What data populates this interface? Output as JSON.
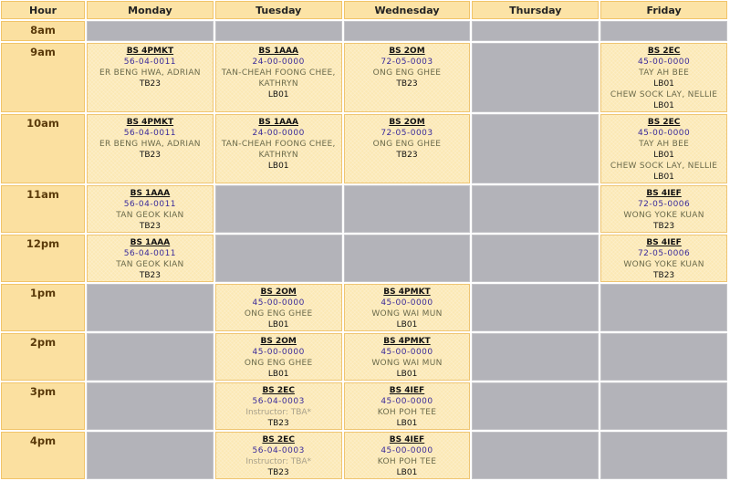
{
  "headers": [
    "Hour",
    "Monday",
    "Tuesday",
    "Wednesday",
    "Thursday",
    "Friday"
  ],
  "rows": [
    {
      "hour": "8am",
      "cells": [
        null,
        null,
        null,
        null,
        null
      ]
    },
    {
      "hour": "9am",
      "cells": [
        {
          "course": "BS 4PMKT",
          "code": "56-04-0011",
          "lines": [
            {
              "inst": "ER BENG HWA, ADRIAN",
              "room": "TB23"
            }
          ]
        },
        {
          "course": "BS 1AAA",
          "code": "24-00-0000",
          "lines": [
            {
              "inst": "TAN-CHEAH FOONG CHEE, KATHRYN",
              "room": "LB01"
            }
          ]
        },
        {
          "course": "BS 2OM",
          "code": "72-05-0003",
          "lines": [
            {
              "inst": "ONG ENG GHEE",
              "room": "TB23"
            }
          ]
        },
        null,
        {
          "course": "BS 2EC",
          "code": "45-00-0000",
          "lines": [
            {
              "inst": "TAY AH BEE",
              "room": "LB01"
            },
            {
              "inst": "CHEW SOCK LAY, NELLIE",
              "room": "LB01"
            }
          ]
        }
      ]
    },
    {
      "hour": "10am",
      "cells": [
        {
          "course": "BS 4PMKT",
          "code": "56-04-0011",
          "lines": [
            {
              "inst": "ER BENG HWA, ADRIAN",
              "room": "TB23"
            }
          ]
        },
        {
          "course": "BS 1AAA",
          "code": "24-00-0000",
          "lines": [
            {
              "inst": "TAN-CHEAH FOONG CHEE, KATHRYN",
              "room": "LB01"
            }
          ]
        },
        {
          "course": "BS 2OM",
          "code": "72-05-0003",
          "lines": [
            {
              "inst": "ONG ENG GHEE",
              "room": "TB23"
            }
          ]
        },
        null,
        {
          "course": "BS 2EC",
          "code": "45-00-0000",
          "lines": [
            {
              "inst": "TAY AH BEE",
              "room": "LB01"
            },
            {
              "inst": "CHEW SOCK LAY, NELLIE",
              "room": "LB01"
            }
          ]
        }
      ]
    },
    {
      "hour": "11am",
      "cells": [
        {
          "course": "BS 1AAA",
          "code": "56-04-0011",
          "lines": [
            {
              "inst": "TAN GEOK KIAN",
              "room": "TB23"
            }
          ]
        },
        null,
        null,
        null,
        {
          "course": "BS 4IEF",
          "code": "72-05-0006",
          "lines": [
            {
              "inst": "WONG YOKE KUAN",
              "room": "TB23"
            }
          ]
        }
      ]
    },
    {
      "hour": "12pm",
      "cells": [
        {
          "course": "BS 1AAA",
          "code": "56-04-0011",
          "lines": [
            {
              "inst": "TAN GEOK KIAN",
              "room": "TB23"
            }
          ]
        },
        null,
        null,
        null,
        {
          "course": "BS 4IEF",
          "code": "72-05-0006",
          "lines": [
            {
              "inst": "WONG YOKE KUAN",
              "room": "TB23"
            }
          ]
        }
      ]
    },
    {
      "hour": "1pm",
      "cells": [
        null,
        {
          "course": "BS 2OM",
          "code": "45-00-0000",
          "lines": [
            {
              "inst": "ONG ENG GHEE",
              "room": "LB01"
            }
          ]
        },
        {
          "course": "BS 4PMKT",
          "code": "45-00-0000",
          "lines": [
            {
              "inst": "WONG WAI MUN",
              "room": "LB01"
            }
          ]
        },
        null,
        null
      ]
    },
    {
      "hour": "2pm",
      "cells": [
        null,
        {
          "course": "BS 2OM",
          "code": "45-00-0000",
          "lines": [
            {
              "inst": "ONG ENG GHEE",
              "room": "LB01"
            }
          ]
        },
        {
          "course": "BS 4PMKT",
          "code": "45-00-0000",
          "lines": [
            {
              "inst": "WONG WAI MUN",
              "room": "LB01"
            }
          ]
        },
        null,
        null
      ]
    },
    {
      "hour": "3pm",
      "cells": [
        null,
        {
          "course": "BS 2EC",
          "code": "56-04-0003",
          "lines": [
            {
              "inst": "Instructor: TBA*",
              "tba": true,
              "room": "TB23"
            }
          ]
        },
        {
          "course": "BS 4IEF",
          "code": "45-00-0000",
          "lines": [
            {
              "inst": "KOH POH TEE",
              "room": "LB01"
            }
          ]
        },
        null,
        null
      ]
    },
    {
      "hour": "4pm",
      "cells": [
        null,
        {
          "course": "BS 2EC",
          "code": "56-04-0003",
          "lines": [
            {
              "inst": "Instructor: TBA*",
              "tba": true,
              "room": "TB23"
            }
          ]
        },
        {
          "course": "BS 4IEF",
          "code": "45-00-0000",
          "lines": [
            {
              "inst": "KOH POH TEE",
              "room": "LB01"
            }
          ]
        },
        null,
        null
      ]
    }
  ]
}
